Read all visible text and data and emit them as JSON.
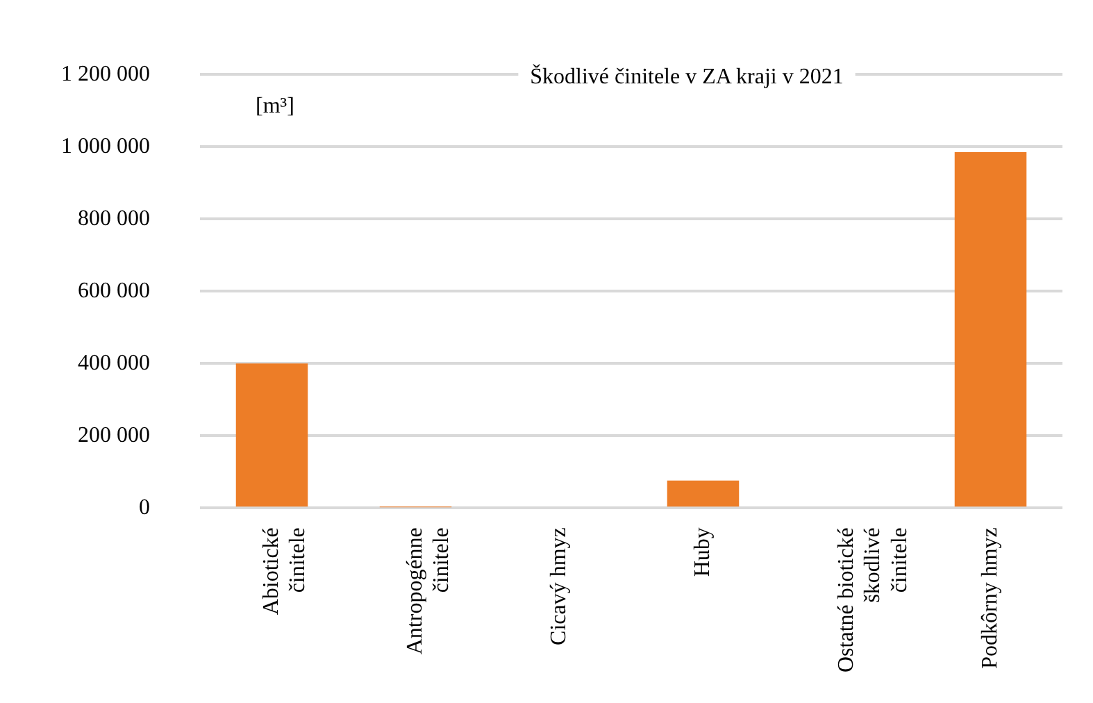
{
  "chart_data": {
    "type": "bar",
    "title": "Škodlivé činitele v ZA kraji v 2021",
    "ylabel": "[m³]",
    "categories": [
      "Abiotické činitele",
      "Antropogénne činitele",
      "Cicavý hmyz",
      "Huby",
      "Ostatné biotické škodlivé činitele",
      "Podkôrny hmyz"
    ],
    "values": [
      400000,
      2000,
      0,
      76000,
      0,
      985000
    ],
    "color": "#ed7d27",
    "ylim": [
      0,
      1200000
    ],
    "yticks": [
      0,
      200000,
      400000,
      600000,
      800000,
      1000000,
      1200000
    ],
    "grid": "y"
  }
}
